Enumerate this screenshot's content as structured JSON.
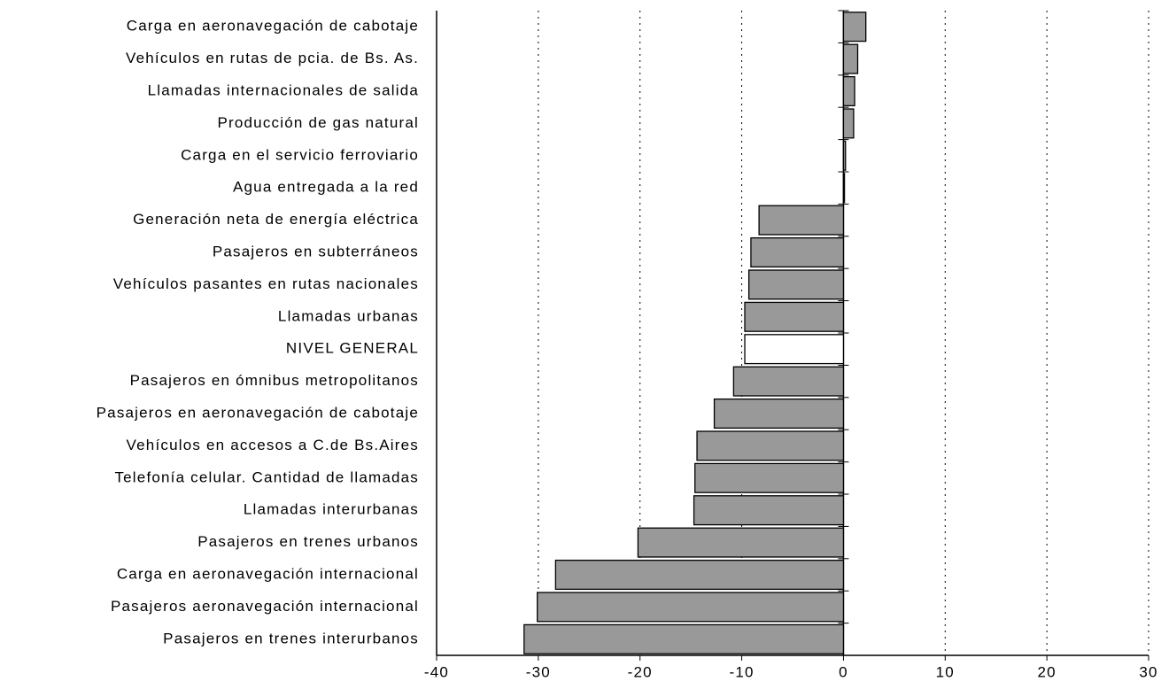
{
  "chart_data": {
    "type": "barh",
    "categories": [
      "Carga en aeronavegación de cabotaje",
      "Vehículos en rutas de pcia. de Bs. As.",
      "Llamadas internacionales de salida",
      "Producción de gas natural",
      "Carga en el servicio ferroviario",
      "Agua entregada a la red",
      "Generación neta de energía eléctrica",
      "Pasajeros en subterráneos",
      "Vehículos pasantes en rutas nacionales",
      "Llamadas urbanas",
      "NIVEL GENERAL",
      "Pasajeros en ómnibus metropolitanos",
      "Pasajeros en aeronavegación de cabotaje",
      "Vehículos en accesos a C.de Bs.Aires",
      "Telefonía celular. Cantidad de llamadas",
      "Llamadas interurbanas",
      "Pasajeros en trenes urbanos",
      "Carga en aeronavegación internacional",
      "Pasajeros aeronavegación internacional",
      "Pasajeros en trenes interurbanos"
    ],
    "values": [
      2.2,
      1.4,
      1.1,
      1.0,
      0.2,
      0.1,
      -8.3,
      -9.1,
      -9.3,
      -9.7,
      -9.7,
      -10.8,
      -12.7,
      -14.4,
      -14.6,
      -14.7,
      -20.2,
      -28.3,
      -30.1,
      -31.4
    ],
    "colors": [
      "#999999",
      "#999999",
      "#999999",
      "#999999",
      "#999999",
      "#999999",
      "#999999",
      "#999999",
      "#999999",
      "#999999",
      "#ffffff",
      "#999999",
      "#999999",
      "#999999",
      "#999999",
      "#999999",
      "#999999",
      "#999999",
      "#999999",
      "#999999"
    ],
    "xlim": [
      -40,
      30
    ],
    "xticks": [
      -40,
      -30,
      -20,
      -10,
      0,
      10,
      20,
      30
    ],
    "grid": true
  }
}
